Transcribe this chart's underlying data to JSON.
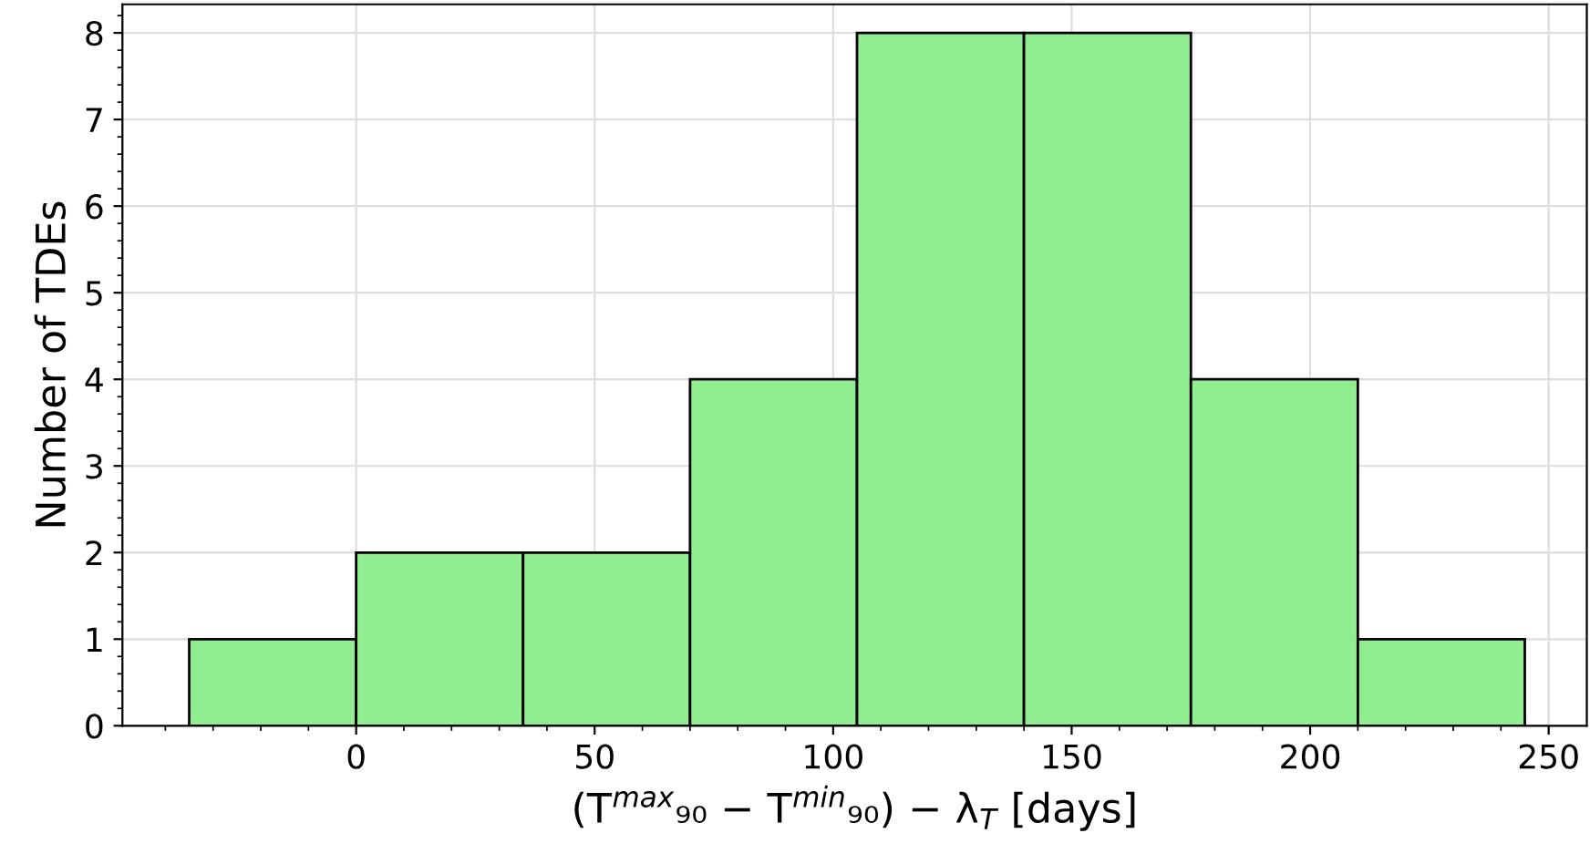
{
  "chart_data": {
    "type": "histogram",
    "bins": [
      -35,
      0,
      35,
      70,
      105,
      140,
      175,
      210,
      245
    ],
    "values": [
      1,
      2,
      2,
      4,
      8,
      8,
      4,
      1
    ],
    "color": "#90ee90",
    "xlabel": "(T$^{max}$₉₀ − T$^{min}$₉₀) − λ$_{T}$ [days]",
    "ylabel": "Number of TDEs",
    "xlim": [
      -49,
      258
    ],
    "ylim": [
      0,
      8.33
    ],
    "xticks": [
      0,
      50,
      100,
      150,
      200,
      250
    ],
    "yticks": [
      0,
      1,
      2,
      3,
      4,
      5,
      6,
      7,
      8
    ],
    "grid": true
  }
}
